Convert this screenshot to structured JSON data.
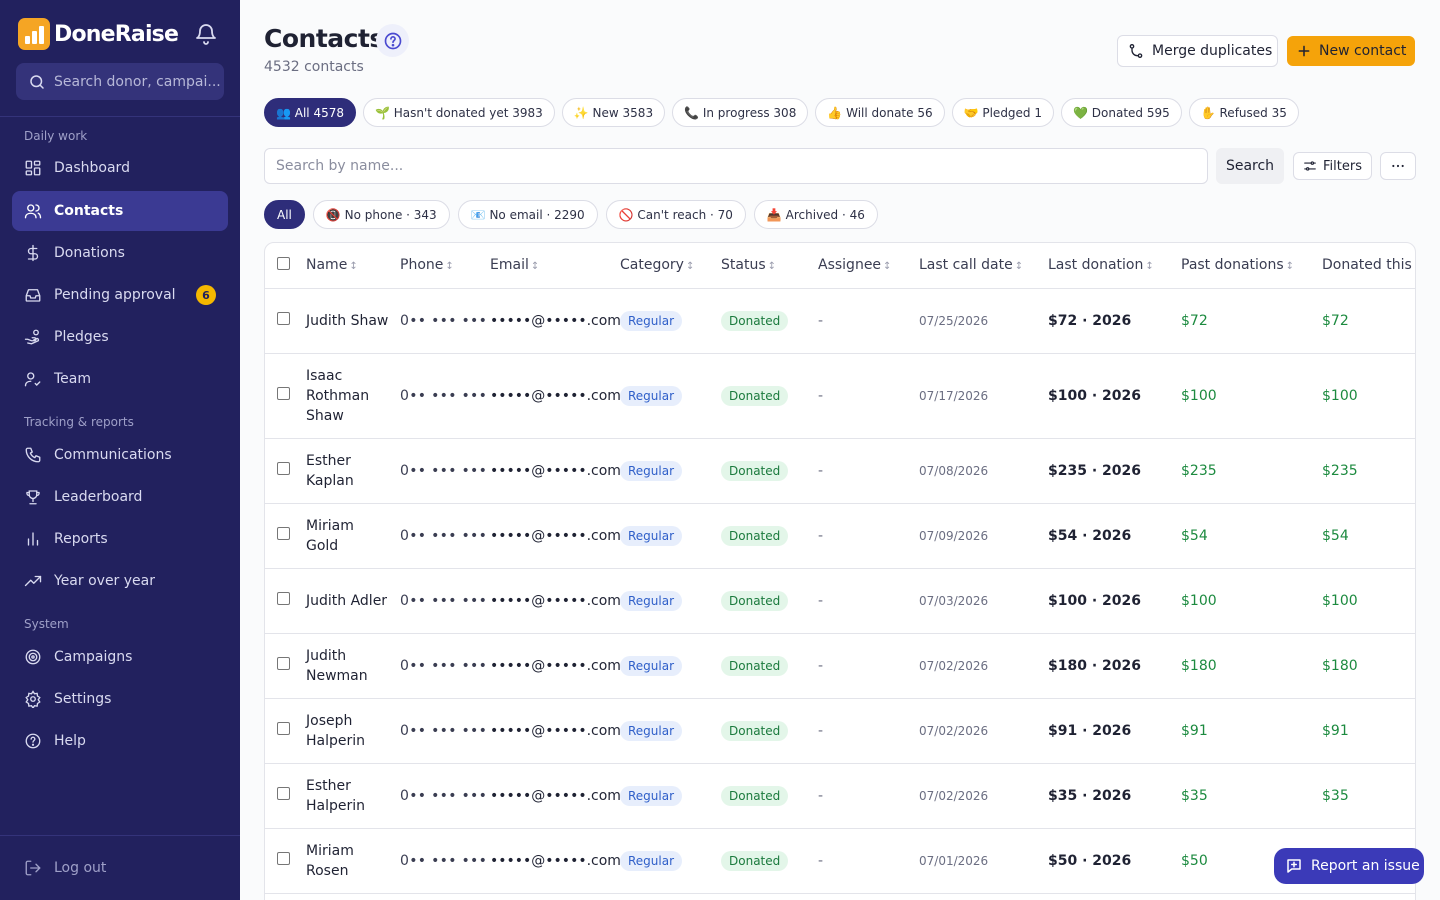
{
  "brand": {
    "name": "DoneRaise"
  },
  "sidebar": {
    "search_placeholder": "Search donor, campai...",
    "sections": {
      "daily": "Daily work",
      "tracking": "Tracking & reports",
      "system": "System"
    },
    "items": [
      {
        "label": "Dashboard",
        "icon": "dashboard-icon"
      },
      {
        "label": "Contacts",
        "icon": "users-icon",
        "active": true
      },
      {
        "label": "Donations",
        "icon": "dollar-icon"
      },
      {
        "label": "Pending approval",
        "icon": "inbox-icon",
        "badge": "6"
      },
      {
        "label": "Pledges",
        "icon": "hand-coin-icon"
      },
      {
        "label": "Team",
        "icon": "user-check-icon"
      },
      {
        "label": "Communications",
        "icon": "phone-icon"
      },
      {
        "label": "Leaderboard",
        "icon": "trophy-icon"
      },
      {
        "label": "Reports",
        "icon": "bar-chart-icon"
      },
      {
        "label": "Year over year",
        "icon": "trending-up-icon"
      },
      {
        "label": "Campaigns",
        "icon": "target-icon"
      },
      {
        "label": "Settings",
        "icon": "gear-icon"
      },
      {
        "label": "Help",
        "icon": "help-icon"
      }
    ],
    "logout": "Log out"
  },
  "header": {
    "title": "Contacts",
    "subtitle": "4532 contacts",
    "merge_label": "Merge duplicates",
    "new_label": "New contact"
  },
  "status_chips": [
    "👥 All 4578",
    "🌱 Hasn't donated yet 3983",
    "✨ New 3583",
    "📞 In progress 308",
    "👍 Will donate 56",
    "🤝 Pledged 1",
    "💚 Donated 595",
    "✋ Refused 35"
  ],
  "search": {
    "placeholder": "Search by name...",
    "button": "Search",
    "filters": "Filters"
  },
  "filter_chips": [
    "All",
    "📵 No phone · 343",
    "📧 No email · 2290",
    "🚫 Can't reach · 70",
    "📥 Archived · 46"
  ],
  "table": {
    "columns": [
      "Name",
      "Phone",
      "Email",
      "Category",
      "Status",
      "Assignee",
      "Last call date",
      "Last donation",
      "Past donations",
      "Donated this"
    ],
    "rows": [
      {
        "name": "Judith Shaw",
        "phone": "0•• ••• •••",
        "email": "•••••@•••••.com",
        "category": "Regular",
        "status": "Donated",
        "assignee": "-",
        "last_call": "07/25/2026",
        "last_donation": "$72 · 2026",
        "past": "$72",
        "this": "$72"
      },
      {
        "name": "Isaac Rothman Shaw",
        "phone": "0•• ••• •••",
        "email": "•••••@•••••.com",
        "category": "Regular",
        "status": "Donated",
        "assignee": "-",
        "last_call": "07/17/2026",
        "last_donation": "$100 · 2026",
        "past": "$100",
        "this": "$100"
      },
      {
        "name": "Esther Kaplan",
        "phone": "0•• ••• •••",
        "email": "•••••@•••••.com",
        "category": "Regular",
        "status": "Donated",
        "assignee": "-",
        "last_call": "07/08/2026",
        "last_donation": "$235 · 2026",
        "past": "$235",
        "this": "$235"
      },
      {
        "name": "Miriam Gold",
        "phone": "0•• ••• •••",
        "email": "•••••@•••••.com",
        "category": "Regular",
        "status": "Donated",
        "assignee": "-",
        "last_call": "07/09/2026",
        "last_donation": "$54 · 2026",
        "past": "$54",
        "this": "$54"
      },
      {
        "name": "Judith Adler",
        "phone": "0•• ••• •••",
        "email": "•••••@•••••.com",
        "category": "Regular",
        "status": "Donated",
        "assignee": "-",
        "last_call": "07/03/2026",
        "last_donation": "$100 · 2026",
        "past": "$100",
        "this": "$100"
      },
      {
        "name": "Judith Newman",
        "phone": "0•• ••• •••",
        "email": "•••••@•••••.com",
        "category": "Regular",
        "status": "Donated",
        "assignee": "-",
        "last_call": "07/02/2026",
        "last_donation": "$180 · 2026",
        "past": "$180",
        "this": "$180"
      },
      {
        "name": "Joseph Halperin",
        "phone": "0•• ••• •••",
        "email": "•••••@•••••.com",
        "category": "Regular",
        "status": "Donated",
        "assignee": "-",
        "last_call": "07/02/2026",
        "last_donation": "$91 · 2026",
        "past": "$91",
        "this": "$91"
      },
      {
        "name": "Esther Halperin",
        "phone": "0•• ••• •••",
        "email": "•••••@•••••.com",
        "category": "Regular",
        "status": "Donated",
        "assignee": "-",
        "last_call": "07/02/2026",
        "last_donation": "$35 · 2026",
        "past": "$35",
        "this": "$35"
      },
      {
        "name": "Miriam Rosen",
        "phone": "0•• ••• •••",
        "email": "•••••@•••••.com",
        "category": "Regular",
        "status": "Donated",
        "assignee": "-",
        "last_call": "07/01/2026",
        "last_donation": "$50 · 2026",
        "past": "$50",
        "this": "$50"
      }
    ]
  },
  "report_issue": "Report an issue",
  "colors": {
    "sidebar": "#22215e",
    "accent": "#f5a30a",
    "active_chip": "#2e2d7a",
    "success": "#1c8a3f",
    "report_button": "#3b3ab8"
  }
}
